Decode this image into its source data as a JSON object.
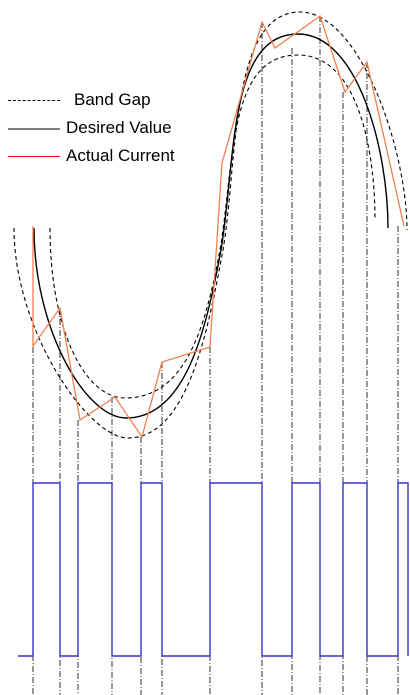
{
  "legend": {
    "band_gap": {
      "label": "Band Gap",
      "color": "#000000",
      "style": "dashed"
    },
    "desired_value": {
      "label": "Desired Value",
      "color": "#808080",
      "style": "solid"
    },
    "actual_current": {
      "label": "Actual Current",
      "color": "#ff0000",
      "style": "solid"
    }
  },
  "colors": {
    "band_gap": "#000000",
    "desired_value": "#000000",
    "actual_current": "#f08050",
    "switching_signal": "#3333cc",
    "switching_signal_light": "#8888ee",
    "guide_lines": "#000000"
  },
  "switching_signal": {
    "levels": [
      "low",
      "high",
      "low",
      "high",
      "low",
      "high",
      "low",
      "high",
      "low",
      "high",
      "low",
      "high",
      "low",
      "high",
      "low"
    ]
  }
}
